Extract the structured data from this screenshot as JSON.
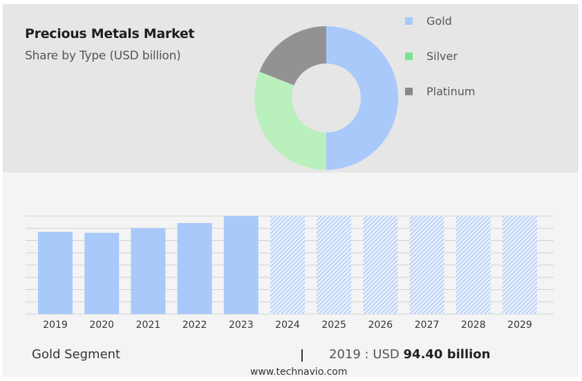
{
  "header": {
    "title": "Precious Metals Market",
    "subtitle": "Share by Type (USD billion)"
  },
  "legend": [
    {
      "label": "Gold",
      "color": "#a9c9fb"
    },
    {
      "label": "Silver",
      "color": "#7ee38e"
    },
    {
      "label": "Platinum",
      "color": "#888888"
    }
  ],
  "chart_data": [
    {
      "type": "pie",
      "donut": true,
      "title": "Share by Type (USD billion)",
      "categories": [
        "Gold",
        "Silver",
        "Platinum"
      ],
      "values": [
        50,
        31,
        19
      ],
      "colors": [
        "#a9c9fb",
        "#b9f0bd",
        "#929292"
      ]
    },
    {
      "type": "bar",
      "categories": [
        "2019",
        "2020",
        "2021",
        "2022",
        "2023",
        "2024",
        "2025",
        "2026",
        "2027",
        "2028",
        "2029"
      ],
      "values": [
        94.4,
        93.2,
        98.6,
        104.5,
        112.5,
        112.5,
        112.5,
        112.5,
        112.5,
        112.5,
        112.5
      ],
      "forecast_from": "2024",
      "ylim": [
        0,
        112.5
      ],
      "grid": true,
      "color": "#a9c9fb"
    }
  ],
  "footer": {
    "segment_label": "Gold Segment",
    "stat_prefix": "2019 : USD",
    "stat_value": "94.40 billion",
    "url": "www.technavio.com"
  }
}
